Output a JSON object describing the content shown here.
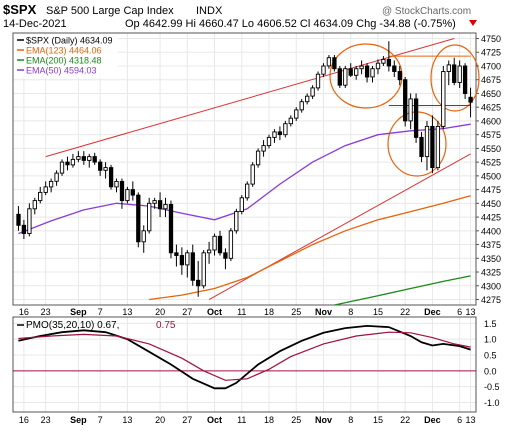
{
  "header": {
    "symbol": "$SPX",
    "name": "S&P 500 Large Cap Index",
    "exchange": "INDX",
    "date": "14-Dec-2021",
    "ohlc": "Op 4642.99  Hi 4660.47  Lo 4606.52  Cl 4634.09  Chg -34.88 (-0.75%)",
    "watermark": "@ StockCharts.com"
  },
  "legend": [
    {
      "label": "$SPX (Daily) 4634.09",
      "color": "#000000"
    },
    {
      "label": "EMA(123) 4464.06",
      "color": "#e8630a"
    },
    {
      "label": "EMA(200) 4318.48",
      "color": "#1a8a1a"
    },
    {
      "label": "EMA(50) 4594.03",
      "color": "#8a3ad8"
    }
  ],
  "pmo_legend": {
    "prefix": "PMO(35,20,10) 0.67, ",
    "signal": "0.75"
  },
  "x_labels": [
    "16",
    "23",
    "Sep",
    "7",
    "13",
    "20",
    "27",
    "Oct",
    "11",
    "18",
    "25",
    "Nov",
    "8",
    "15",
    "22",
    "Dec",
    "6",
    "13"
  ],
  "price_axis": [
    "4750",
    "4725",
    "4700",
    "4675",
    "4650",
    "4625",
    "4600",
    "4575",
    "4550",
    "4525",
    "4500",
    "4475",
    "4450",
    "4425",
    "4400",
    "4375",
    "4350",
    "4325",
    "4300",
    "4275"
  ],
  "pmo_axis": [
    "1.5",
    "1.0",
    "0.5",
    "0.0",
    "-0.5",
    "-1.0"
  ],
  "colors": {
    "price": "#000000",
    "ema123": "#e8630a",
    "ema200": "#1a8a1a",
    "ema50": "#8a3ad8",
    "trend": "#e03030",
    "pmo": "#000000",
    "signal": "#a01040",
    "zero": "#a01040",
    "grid": "#e8e8e8"
  },
  "chart_data": [
    {
      "type": "candlestick",
      "title": "$SPX S&P 500 Large Cap Index INDX",
      "ylim": [
        4265,
        4760
      ],
      "candles": [
        [
          4430,
          4445,
          4400,
          4410
        ],
        [
          4410,
          4420,
          4385,
          4395
        ],
        [
          4395,
          4450,
          4390,
          4440
        ],
        [
          4440,
          4460,
          4430,
          4455
        ],
        [
          4455,
          4480,
          4450,
          4470
        ],
        [
          4470,
          4490,
          4465,
          4480
        ],
        [
          4480,
          4495,
          4470,
          4490
        ],
        [
          4490,
          4510,
          4482,
          4505
        ],
        [
          4505,
          4530,
          4500,
          4525
        ],
        [
          4525,
          4535,
          4510,
          4520
        ],
        [
          4520,
          4540,
          4515,
          4530
        ],
        [
          4530,
          4545,
          4525,
          4535
        ],
        [
          4535,
          4545,
          4520,
          4528
        ],
        [
          4528,
          4540,
          4515,
          4535
        ],
        [
          4535,
          4542,
          4520,
          4525
        ],
        [
          4525,
          4530,
          4500,
          4510
        ],
        [
          4510,
          4525,
          4495,
          4515
        ],
        [
          4515,
          4520,
          4475,
          4480
        ],
        [
          4480,
          4495,
          4470,
          4490
        ],
        [
          4490,
          4495,
          4440,
          4455
        ],
        [
          4455,
          4480,
          4450,
          4475
        ],
        [
          4475,
          4490,
          4455,
          4465
        ],
        [
          4465,
          4470,
          4370,
          4380
        ],
        [
          4380,
          4410,
          4360,
          4400
        ],
        [
          4400,
          4460,
          4395,
          4450
        ],
        [
          4450,
          4460,
          4440,
          4455
        ],
        [
          4455,
          4470,
          4425,
          4440
        ],
        [
          4440,
          4460,
          4425,
          4448
        ],
        [
          4448,
          4455,
          4350,
          4360
        ],
        [
          4360,
          4375,
          4335,
          4355
        ],
        [
          4355,
          4370,
          4320,
          4338
        ],
        [
          4338,
          4365,
          4315,
          4360
        ],
        [
          4360,
          4375,
          4300,
          4310
        ],
        [
          4310,
          4345,
          4280,
          4300
        ],
        [
          4300,
          4365,
          4295,
          4360
        ],
        [
          4360,
          4380,
          4340,
          4365
        ],
        [
          4365,
          4395,
          4355,
          4390
        ],
        [
          4390,
          4400,
          4355,
          4360
        ],
        [
          4360,
          4368,
          4330,
          4350
        ],
        [
          4350,
          4405,
          4345,
          4400
        ],
        [
          4400,
          4440,
          4395,
          4435
        ],
        [
          4435,
          4465,
          4430,
          4460
        ],
        [
          4460,
          4490,
          4455,
          4485
        ],
        [
          4485,
          4525,
          4480,
          4520
        ],
        [
          4520,
          4550,
          4515,
          4545
        ],
        [
          4545,
          4565,
          4535,
          4555
        ],
        [
          4555,
          4575,
          4550,
          4570
        ],
        [
          4570,
          4585,
          4560,
          4580
        ],
        [
          4580,
          4590,
          4565,
          4575
        ],
        [
          4575,
          4600,
          4570,
          4595
        ],
        [
          4595,
          4610,
          4590,
          4605
        ],
        [
          4605,
          4625,
          4600,
          4620
        ],
        [
          4620,
          4640,
          4615,
          4635
        ],
        [
          4635,
          4650,
          4630,
          4645
        ],
        [
          4645,
          4665,
          4640,
          4660
        ],
        [
          4660,
          4690,
          4655,
          4685
        ],
        [
          4685,
          4705,
          4680,
          4700
        ],
        [
          4700,
          4720,
          4695,
          4715
        ],
        [
          4715,
          4720,
          4690,
          4695
        ],
        [
          4695,
          4700,
          4660,
          4665
        ],
        [
          4665,
          4700,
          4660,
          4695
        ],
        [
          4695,
          4705,
          4680,
          4683
        ],
        [
          4683,
          4700,
          4675,
          4695
        ],
        [
          4695,
          4710,
          4685,
          4700
        ],
        [
          4700,
          4705,
          4670,
          4680
        ],
        [
          4680,
          4700,
          4670,
          4695
        ],
        [
          4695,
          4712,
          4685,
          4705
        ],
        [
          4705,
          4718,
          4700,
          4712
        ],
        [
          4712,
          4745,
          4690,
          4700
        ],
        [
          4700,
          4710,
          4680,
          4690
        ],
        [
          4690,
          4700,
          4665,
          4675
        ],
        [
          4675,
          4680,
          4590,
          4600
        ],
        [
          4600,
          4650,
          4585,
          4640
        ],
        [
          4640,
          4650,
          4560,
          4570
        ],
        [
          4570,
          4580,
          4525,
          4535
        ],
        [
          4535,
          4600,
          4510,
          4590
        ],
        [
          4590,
          4610,
          4505,
          4515
        ],
        [
          4515,
          4600,
          4510,
          4590
        ],
        [
          4590,
          4700,
          4585,
          4690
        ],
        [
          4690,
          4710,
          4665,
          4702
        ],
        [
          4702,
          4715,
          4665,
          4670
        ],
        [
          4670,
          4710,
          4660,
          4700
        ],
        [
          4700,
          4705,
          4640,
          4650
        ],
        [
          4642.99,
          4660.47,
          4606.52,
          4634.09
        ]
      ],
      "series": [
        {
          "name": "EMA(50)",
          "values": [
            [
              0,
              4395
            ],
            [
              6,
              4418
            ],
            [
              12,
              4438
            ],
            [
              18,
              4450
            ],
            [
              24,
              4445
            ],
            [
              30,
              4432
            ],
            [
              36,
              4420
            ],
            [
              42,
              4440
            ],
            [
              48,
              4485
            ],
            [
              54,
              4525
            ],
            [
              60,
              4555
            ],
            [
              66,
              4575
            ],
            [
              72,
              4582
            ],
            [
              78,
              4586
            ],
            [
              83,
              4594
            ]
          ]
        },
        {
          "name": "EMA(123)",
          "values": [
            [
              24,
              4275
            ],
            [
              30,
              4283
            ],
            [
              36,
              4295
            ],
            [
              42,
              4315
            ],
            [
              48,
              4345
            ],
            [
              54,
              4375
            ],
            [
              60,
              4400
            ],
            [
              66,
              4420
            ],
            [
              72,
              4435
            ],
            [
              78,
              4450
            ],
            [
              83,
              4464
            ]
          ]
        },
        {
          "name": "EMA(200)",
          "values": [
            [
              58,
              4265
            ],
            [
              66,
              4282
            ],
            [
              72,
              4295
            ],
            [
              78,
              4308
            ],
            [
              83,
              4318
            ]
          ]
        }
      ],
      "trendlines": [
        [
          [
            5,
            4535
          ],
          [
            80,
            4750
          ]
        ],
        [
          [
            35,
            4275
          ],
          [
            83,
            4540
          ]
        ],
        [
          [
            68,
            4718
          ],
          [
            83,
            4718
          ]
        ],
        [
          [
            68,
            4628
          ],
          [
            83,
            4628
          ]
        ]
      ]
    },
    {
      "type": "line",
      "title": "PMO(35,20,10) 0.67, 0.75",
      "ylim": [
        -1.3,
        1.7
      ],
      "series": [
        {
          "name": "PMO",
          "values": [
            [
              0,
              0.95
            ],
            [
              4,
              1.1
            ],
            [
              8,
              1.22
            ],
            [
              12,
              1.28
            ],
            [
              16,
              1.22
            ],
            [
              20,
              1.0
            ],
            [
              24,
              0.6
            ],
            [
              28,
              0.2
            ],
            [
              32,
              -0.25
            ],
            [
              36,
              -0.55
            ],
            [
              38,
              -0.55
            ],
            [
              40,
              -0.38
            ],
            [
              44,
              0.2
            ],
            [
              48,
              0.62
            ],
            [
              52,
              0.95
            ],
            [
              56,
              1.2
            ],
            [
              60,
              1.35
            ],
            [
              64,
              1.42
            ],
            [
              68,
              1.38
            ],
            [
              72,
              1.1
            ],
            [
              74,
              0.9
            ],
            [
              76,
              0.8
            ],
            [
              78,
              0.85
            ],
            [
              81,
              0.78
            ],
            [
              83,
              0.67
            ]
          ]
        },
        {
          "name": "Signal",
          "values": [
            [
              0,
              1.02
            ],
            [
              6,
              1.1
            ],
            [
              12,
              1.15
            ],
            [
              18,
              1.1
            ],
            [
              24,
              0.85
            ],
            [
              30,
              0.4
            ],
            [
              34,
              0.0
            ],
            [
              38,
              -0.3
            ],
            [
              42,
              -0.25
            ],
            [
              46,
              0.05
            ],
            [
              50,
              0.45
            ],
            [
              56,
              0.85
            ],
            [
              62,
              1.1
            ],
            [
              68,
              1.22
            ],
            [
              72,
              1.2
            ],
            [
              76,
              1.05
            ],
            [
              80,
              0.85
            ],
            [
              83,
              0.75
            ]
          ]
        }
      ]
    }
  ]
}
